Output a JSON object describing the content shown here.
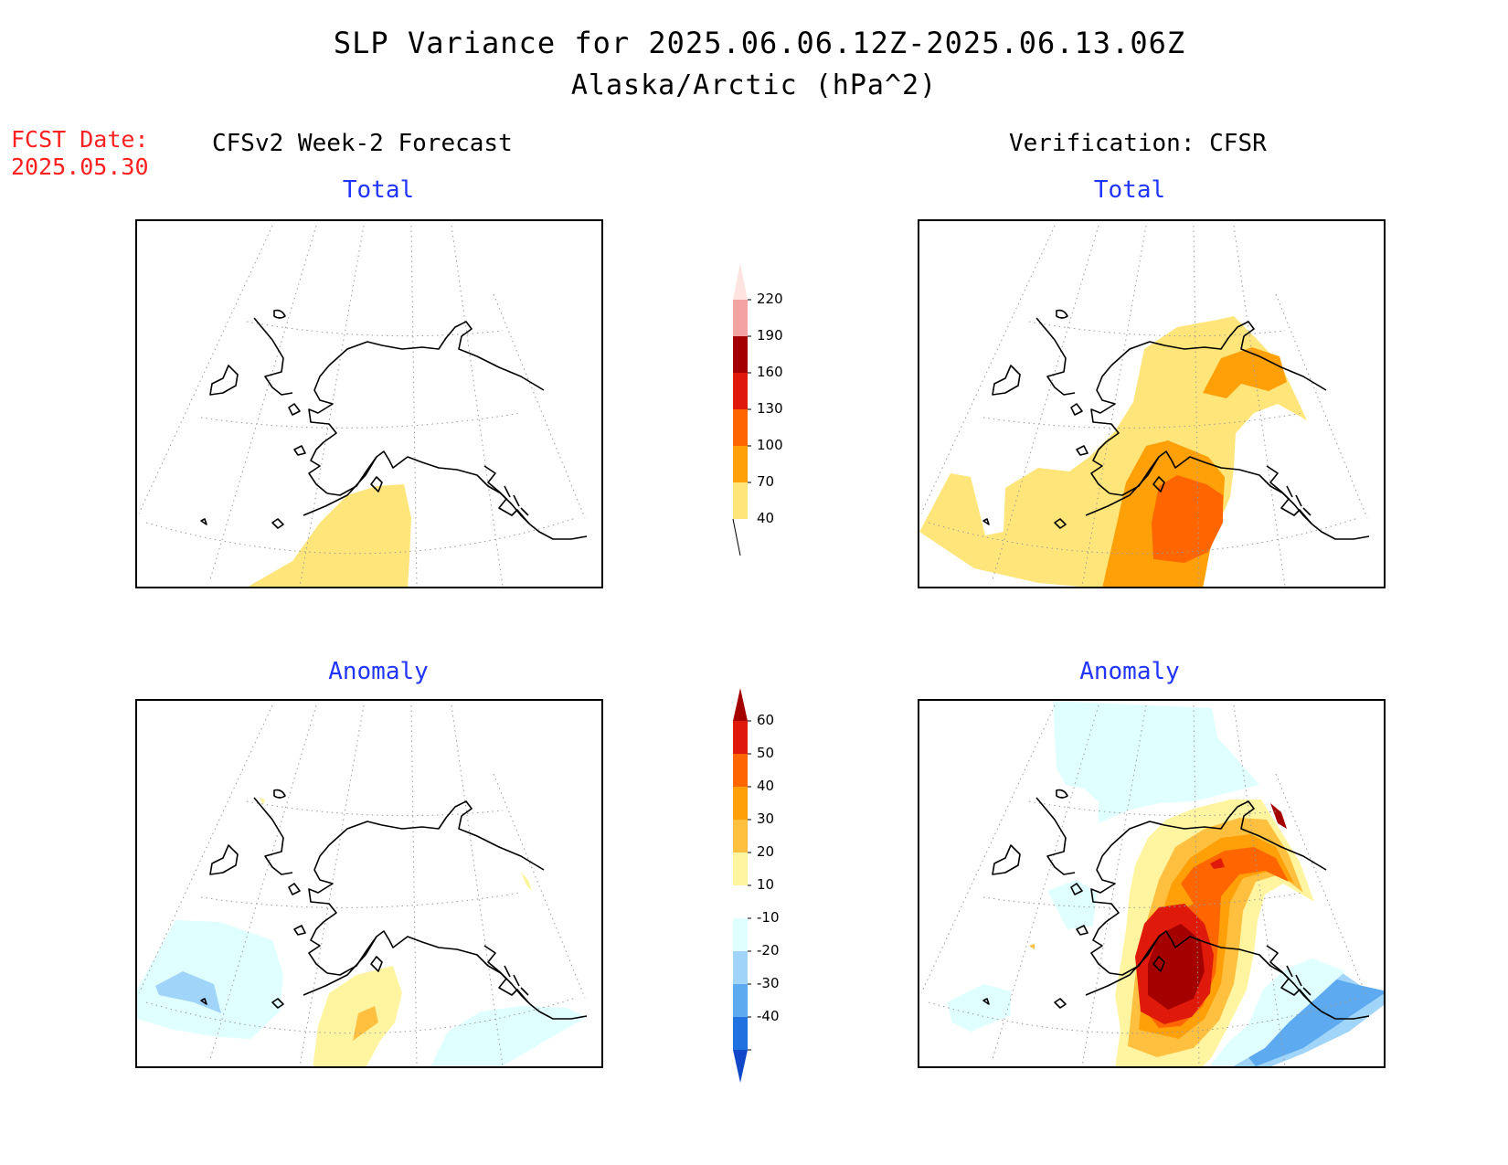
{
  "title": {
    "line1": "SLP Variance for 2025.06.06.12Z-2025.06.13.06Z",
    "line2": "Alaska/Arctic (hPa^2)"
  },
  "fcst_date": {
    "label": "FCST Date:",
    "value": "2025.05.30"
  },
  "columns": {
    "left": "CFSv2 Week-2 Forecast",
    "right": "Verification: CFSR"
  },
  "panels": {
    "top_left": "Total",
    "top_right": "Total",
    "bottom_left": "Anomaly",
    "bottom_right": "Anomaly"
  },
  "colorbars": {
    "total": {
      "labels": [
        "220",
        "190",
        "160",
        "130",
        "100",
        "70",
        "40"
      ],
      "colors": [
        "#fde4e0",
        "#f4a3a3",
        "#a50000",
        "#e01a0a",
        "#ff6600",
        "#ffa008",
        "#ffe57a"
      ]
    },
    "anomaly": {
      "labels": [
        "60",
        "50",
        "40",
        "30",
        "20",
        "10",
        "-10",
        "-20",
        "-30",
        "-40"
      ],
      "colors": [
        "#a50000",
        "#e01a0a",
        "#ff6600",
        "#ffa008",
        "#ffc040",
        "#fff5a0",
        "#ffffff",
        "#e0ffff",
        "#a0d4f8",
        "#5eaaf0",
        "#2072e0",
        "#1048c8"
      ]
    }
  },
  "colors": {
    "title_red": "#ff2020",
    "subtitle_blue": "#2035ff"
  }
}
